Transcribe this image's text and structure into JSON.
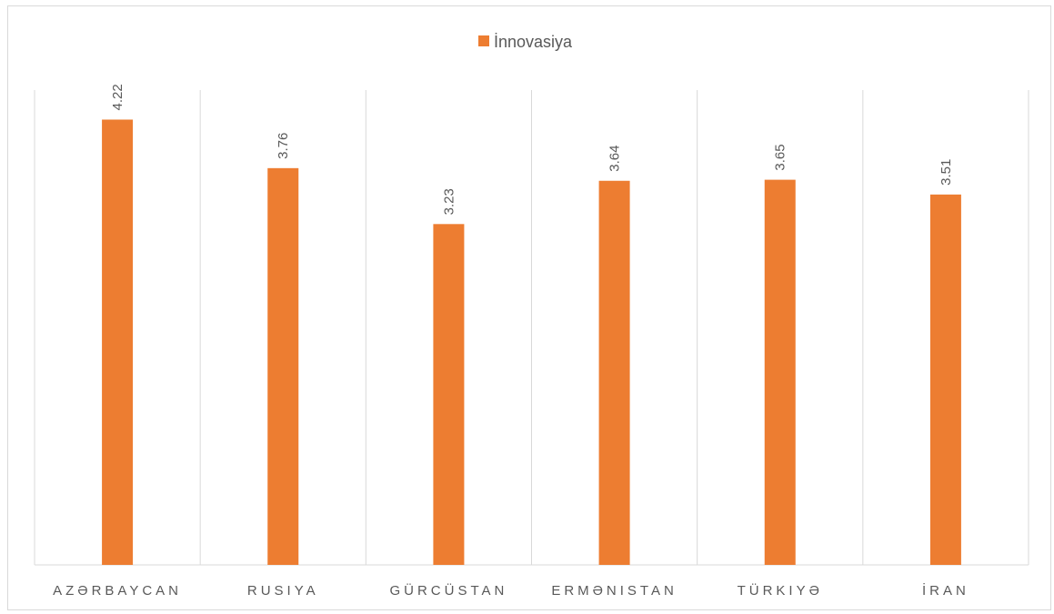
{
  "chart_data": {
    "type": "bar",
    "categories": [
      "AZƏRBAYCAN",
      "RUSIYA",
      "GÜRCÜSTAN",
      "ERMƏNISTAN",
      "TÜRKIYƏ",
      "İRAN"
    ],
    "series": [
      {
        "name": "İnnovasiya",
        "values": [
          4.22,
          3.76,
          3.23,
          3.64,
          3.65,
          3.51
        ],
        "color": "#ed7d31"
      }
    ],
    "title": "",
    "xlabel": "",
    "ylabel": "",
    "ylim": [
      0,
      4.5
    ],
    "grid": "vertical-category-separators",
    "legend_position": "top-center",
    "data_labels": true,
    "data_label_orientation": "vertical"
  }
}
